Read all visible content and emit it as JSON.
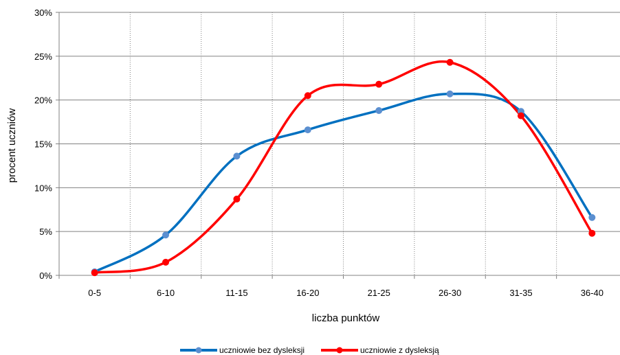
{
  "chart_data": {
    "type": "line",
    "title": "",
    "xlabel": "liczba punktów",
    "ylabel": "procent  uczniów",
    "categories": [
      "0-5",
      "6-10",
      "11-15",
      "16-20",
      "21-25",
      "26-30",
      "31-35",
      "36-40"
    ],
    "y_ticks": [
      "0%",
      "5%",
      "10%",
      "15%",
      "20%",
      "25%",
      "30%"
    ],
    "ylim": [
      0,
      30
    ],
    "y_unit": "%",
    "grid": "vertical dotted lines between categories, horizontal solid lines at ticks",
    "legend_position": "bottom",
    "series": [
      {
        "name": "uczniowie bez dysleksji",
        "color": "#0070C0",
        "marker_color": "#5B8FD0",
        "values": [
          0.4,
          4.6,
          13.6,
          16.6,
          18.8,
          20.7,
          18.7,
          6.6
        ]
      },
      {
        "name": "uczniowie z dysleksją",
        "color": "#FF0000",
        "marker_color": "#FF0000",
        "values": [
          0.3,
          1.5,
          8.7,
          20.5,
          21.8,
          24.3,
          18.2,
          4.8
        ]
      }
    ]
  }
}
